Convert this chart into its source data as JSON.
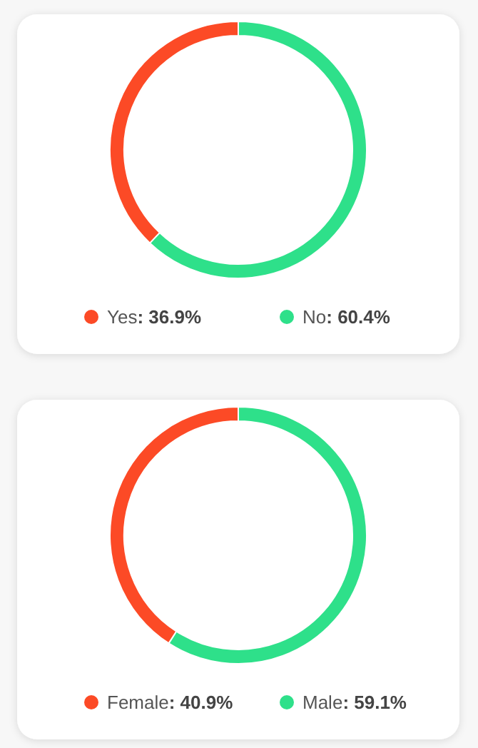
{
  "chart_data": [
    {
      "type": "donut",
      "categories": [
        "Yes",
        "No"
      ],
      "values": [
        36.9,
        60.4
      ],
      "value_labels": [
        ": 36.9%",
        ": 60.4%"
      ],
      "colors": [
        "#fc4a26",
        "#2ee08a"
      ],
      "legend": "bottom"
    },
    {
      "type": "donut",
      "categories": [
        "Female",
        "Male"
      ],
      "values": [
        40.9,
        59.1
      ],
      "value_labels": [
        ": 40.9%",
        ": 59.1%"
      ],
      "colors": [
        "#fc4a26",
        "#2ee08a"
      ],
      "legend": "bottom"
    }
  ]
}
